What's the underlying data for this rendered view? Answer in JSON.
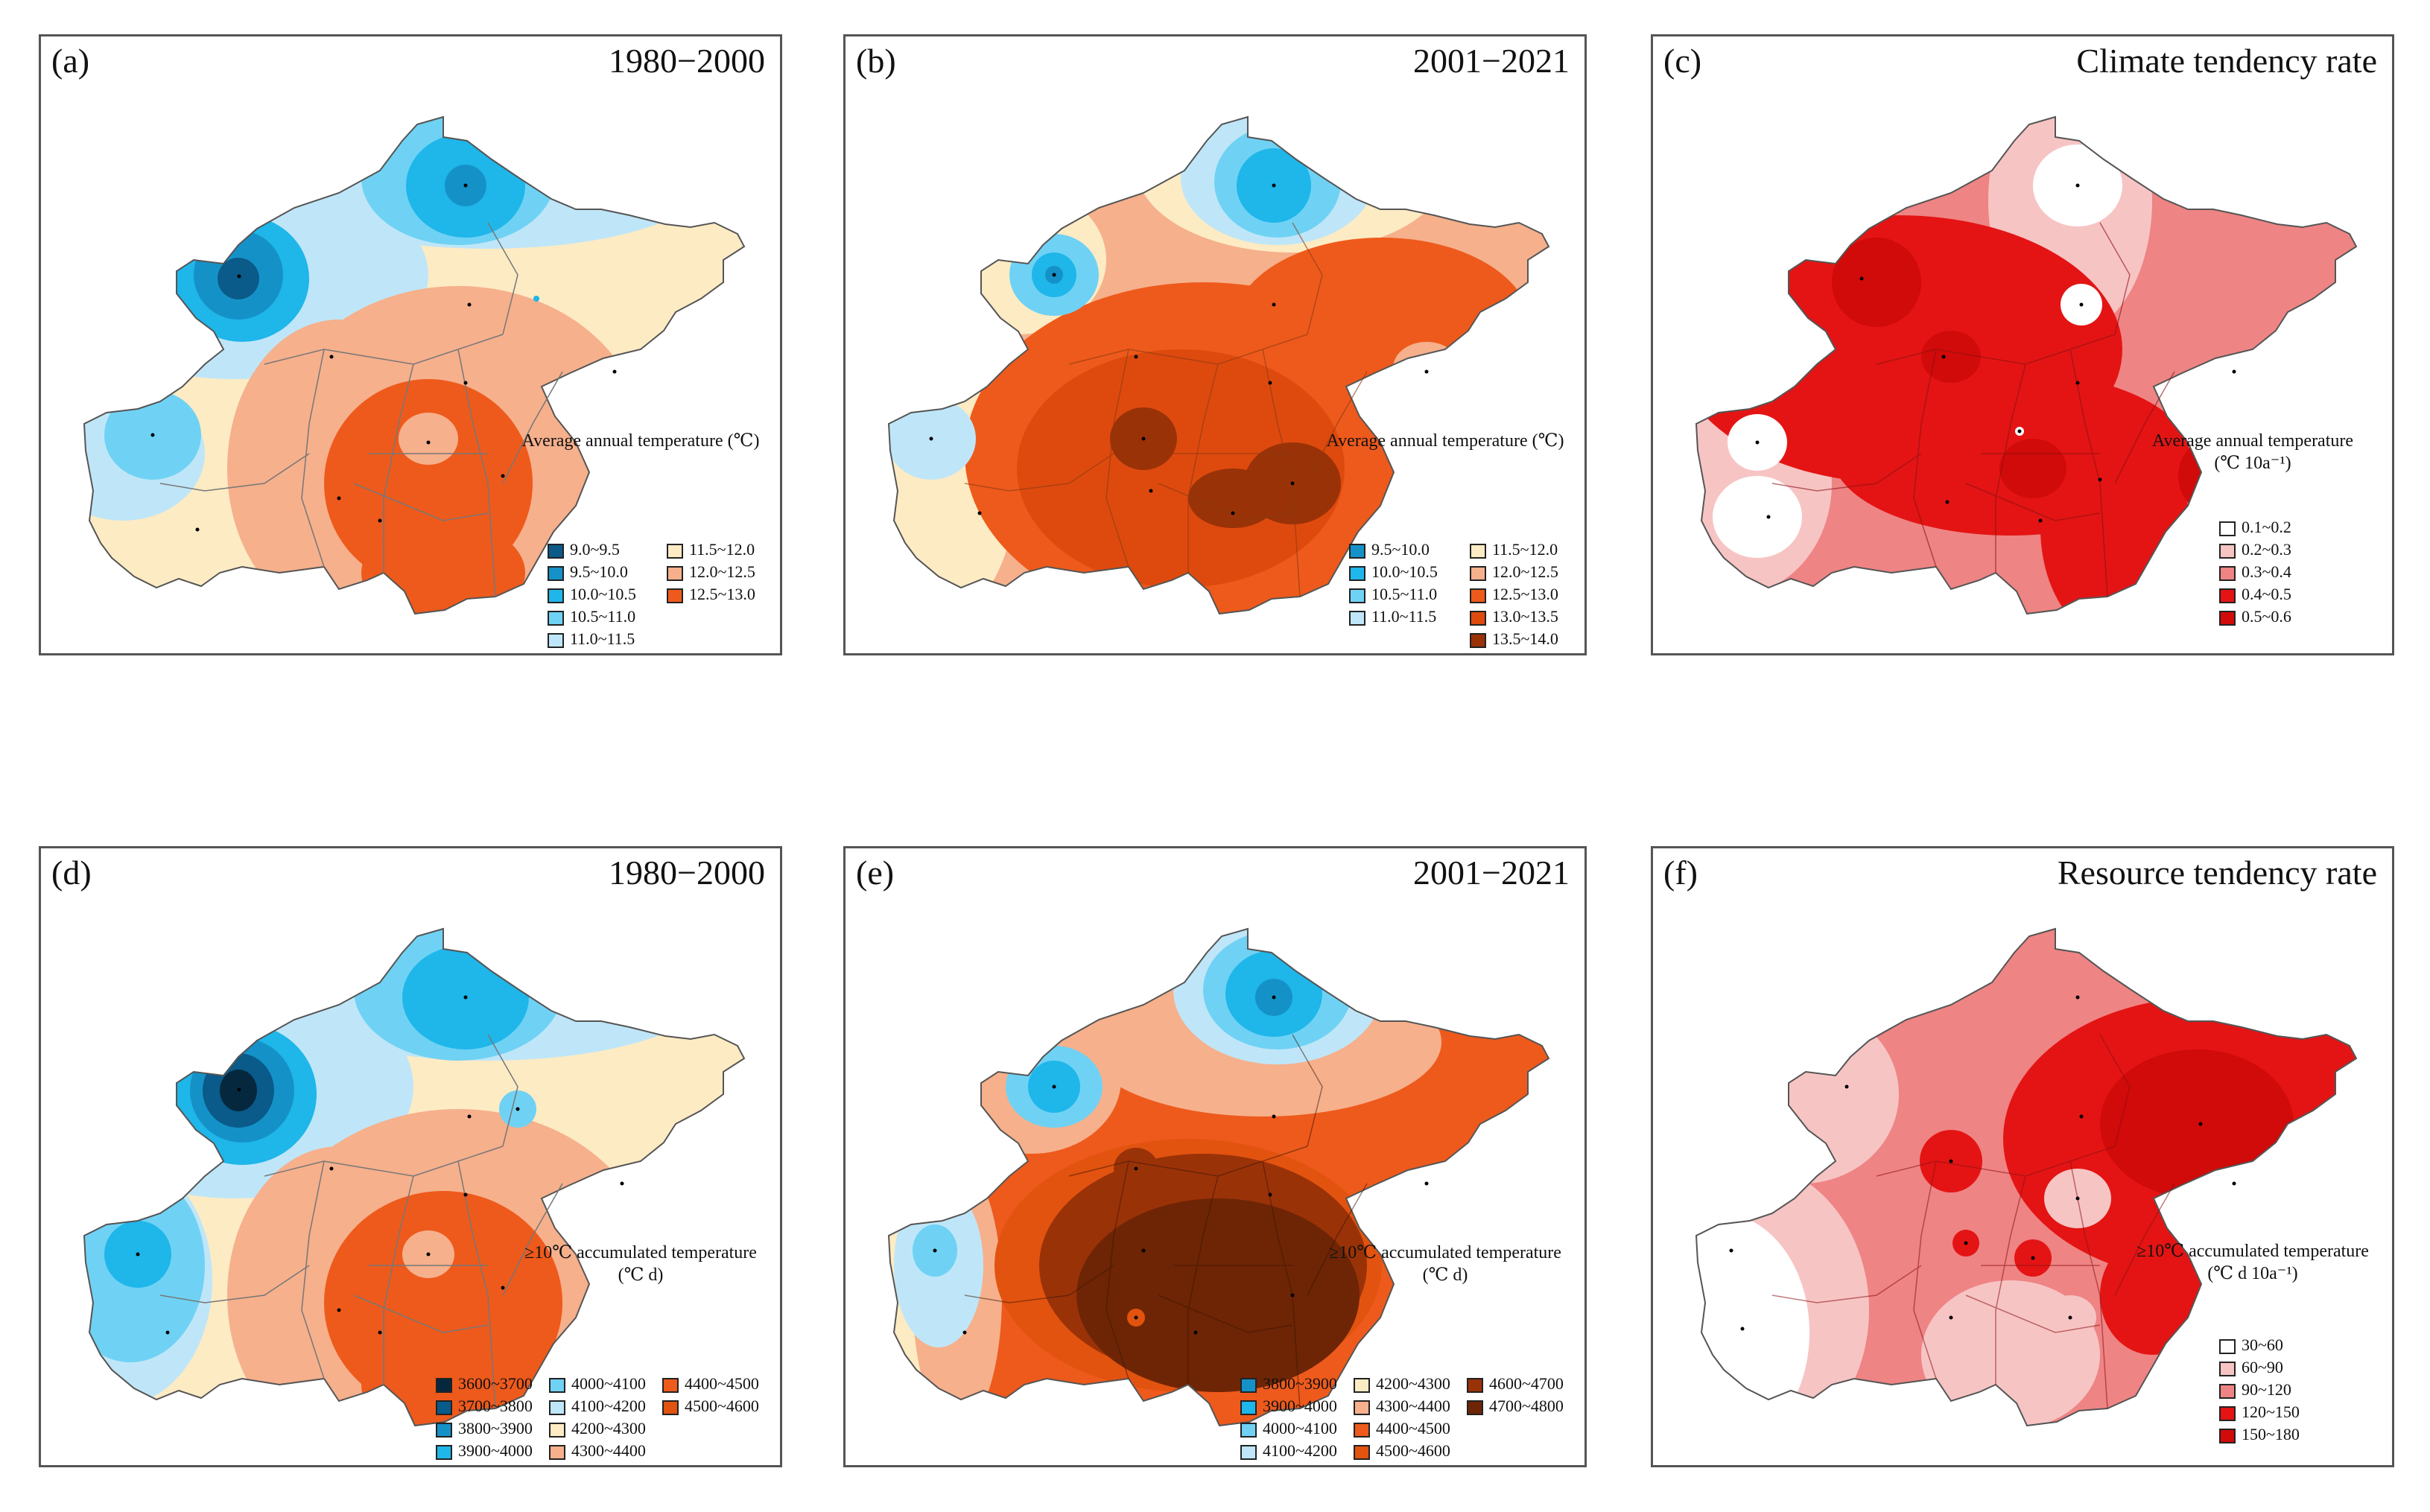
{
  "panels": [
    {
      "label": "(a)",
      "title": "1980−2000",
      "legend_title": "Average annual temperature (℃)",
      "legend": [
        {
          "label": "9.0~9.5",
          "color": "#0a5a8a"
        },
        {
          "label": "9.5~10.0",
          "color": "#1492c8"
        },
        {
          "label": "10.0~10.5",
          "color": "#1fb6ea"
        },
        {
          "label": "10.5~11.0",
          "color": "#6fd2f4"
        },
        {
          "label": "11.0~11.5",
          "color": "#bfe6f8"
        },
        {
          "label": "11.5~12.0",
          "color": "#fdebc4"
        },
        {
          "label": "12.0~12.5",
          "color": "#f6b08c"
        },
        {
          "label": "12.5~13.0",
          "color": "#ee5a1c"
        }
      ]
    },
    {
      "label": "(b)",
      "title": "2001−2021",
      "legend_title": "Average annual temperature (℃)",
      "legend": [
        {
          "label": "9.5~10.0",
          "color": "#1492c8"
        },
        {
          "label": "10.0~10.5",
          "color": "#1fb6ea"
        },
        {
          "label": "10.5~11.0",
          "color": "#6fd2f4"
        },
        {
          "label": "11.0~11.5",
          "color": "#bfe6f8"
        },
        {
          "label": "11.5~12.0",
          "color": "#fdebc4"
        },
        {
          "label": "12.0~12.5",
          "color": "#f6b08c"
        },
        {
          "label": "12.5~13.0",
          "color": "#ee5a1c"
        },
        {
          "label": "13.0~13.5",
          "color": "#de4a0e"
        },
        {
          "label": "13.5~14.0",
          "color": "#9a3208"
        }
      ]
    },
    {
      "label": "(c)",
      "title": "Climate tendency rate",
      "legend_title": "Average annual temperature",
      "legend_unit": "(℃ 10a⁻¹)",
      "legend": [
        {
          "label": "0.1~0.2",
          "color": "#ffffff"
        },
        {
          "label": "0.2~0.3",
          "color": "#f7c4c4"
        },
        {
          "label": "0.3~0.4",
          "color": "#ef8484"
        },
        {
          "label": "0.4~0.5",
          "color": "#e41414"
        },
        {
          "label": "0.5~0.6",
          "color": "#d10a0a"
        }
      ]
    },
    {
      "label": "(d)",
      "title": "1980−2000",
      "legend_title": "≥10℃ accumulated temperature",
      "legend_unit": "(℃ d)",
      "legend": [
        {
          "label": "3600~3700",
          "color": "#06283f"
        },
        {
          "label": "3700~3800",
          "color": "#0a5a8a"
        },
        {
          "label": "3800~3900",
          "color": "#1492c8"
        },
        {
          "label": "3900~4000",
          "color": "#1fb6ea"
        },
        {
          "label": "4000~4100",
          "color": "#6fd2f4"
        },
        {
          "label": "4100~4200",
          "color": "#bfe6f8"
        },
        {
          "label": "4200~4300",
          "color": "#fdebc4"
        },
        {
          "label": "4300~4400",
          "color": "#f6b08c"
        },
        {
          "label": "4400~4500",
          "color": "#ee5a1c"
        },
        {
          "label": "4500~4600",
          "color": "#e2530f"
        }
      ]
    },
    {
      "label": "(e)",
      "title": "2001−2021",
      "legend_title": "≥10℃ accumulated temperature",
      "legend_unit": "(℃ d)",
      "legend": [
        {
          "label": "3800~3900",
          "color": "#1492c8"
        },
        {
          "label": "3900~4000",
          "color": "#1fb6ea"
        },
        {
          "label": "4000~4100",
          "color": "#6fd2f4"
        },
        {
          "label": "4100~4200",
          "color": "#bfe6f8"
        },
        {
          "label": "4200~4300",
          "color": "#fdebc4"
        },
        {
          "label": "4300~4400",
          "color": "#f6b08c"
        },
        {
          "label": "4400~4500",
          "color": "#ee5a1c"
        },
        {
          "label": "4500~4600",
          "color": "#e2530f"
        },
        {
          "label": "4600~4700",
          "color": "#9a3208"
        },
        {
          "label": "4700~4800",
          "color": "#6e2505"
        }
      ]
    },
    {
      "label": "(f)",
      "title": "Resource tendency rate",
      "legend_title": "≥10℃ accumulated temperature",
      "legend_unit": "(℃ d 10a⁻¹)",
      "legend": [
        {
          "label": "30~60",
          "color": "#ffffff"
        },
        {
          "label": "60~90",
          "color": "#f7c4c4"
        },
        {
          "label": "90~120",
          "color": "#ef8484"
        },
        {
          "label": "120~150",
          "color": "#e41414"
        },
        {
          "label": "150~180",
          "color": "#d10a0a"
        }
      ]
    }
  ]
}
